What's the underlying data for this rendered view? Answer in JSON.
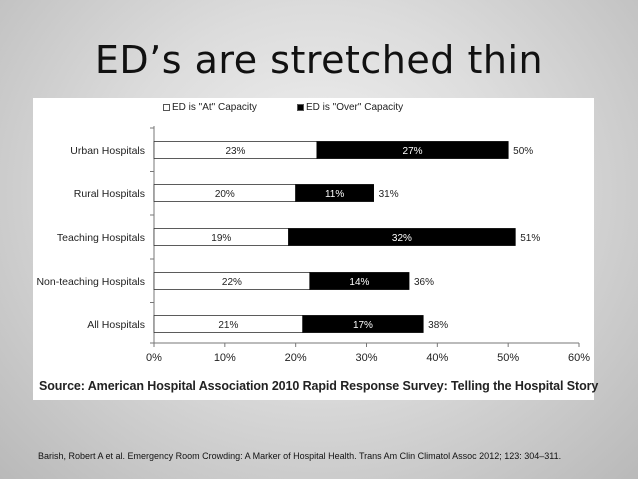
{
  "slide": {
    "title": "ED’s are stretched thin",
    "source": "Source: American Hospital Association 2010 Rapid Response Survey: Telling the Hospital Story",
    "citation": "Barish, Robert A et al.  Emergency Room Crowding: A Marker of Hospital Health.  Trans Am Clin Climatol Assoc 2012; 123: 304–311."
  },
  "chart_data": {
    "type": "bar",
    "orientation": "horizontal",
    "stacked": true,
    "categories": [
      "Urban Hospitals",
      "Rural Hospitals",
      "Teaching Hospitals",
      "Non-teaching Hospitals",
      "All Hospitals"
    ],
    "series": [
      {
        "name": "ED is \"At\" Capacity",
        "values": [
          23,
          20,
          19,
          22,
          21
        ],
        "labels": [
          "23%",
          "20%",
          "19%",
          "22%",
          "21%"
        ],
        "color": "#ffffff"
      },
      {
        "name": "ED is \"Over\" Capacity",
        "values": [
          27,
          11,
          32,
          14,
          17
        ],
        "labels": [
          "27%",
          "11%",
          "32%",
          "14%",
          "17%"
        ],
        "color": "#000000"
      }
    ],
    "totals": [
      "50%",
      "31%",
      "51%",
      "36%",
      "38%"
    ],
    "xlim": [
      0,
      60
    ],
    "xticks": [
      0,
      10,
      20,
      30,
      40,
      50,
      60
    ],
    "xtick_labels": [
      "0%",
      "10%",
      "20%",
      "30%",
      "40%",
      "50%",
      "60%"
    ],
    "legend_position": "top-right",
    "grid": false
  }
}
